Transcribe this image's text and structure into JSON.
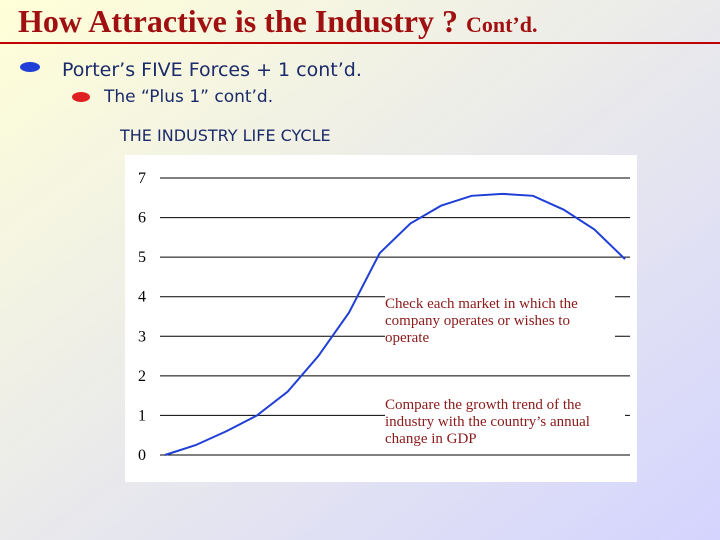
{
  "slide": {
    "title": "How Attractive is the Industry ?",
    "title_suffix": "Cont’d.",
    "bullet_1": "Porter’s FIVE Forces + 1 cont’d.",
    "bullet_2": "The “Plus 1” cont’d.",
    "heading": "THE INDUSTRY LIFE CYCLE"
  },
  "chart_data": {
    "type": "line",
    "categories": [
      null,
      null,
      null,
      null,
      null,
      null,
      null,
      null,
      null,
      null,
      null,
      null,
      null,
      null,
      null,
      null
    ],
    "values": [
      0,
      0.25,
      0.6,
      1.0,
      1.6,
      2.5,
      3.6,
      5.1,
      5.85,
      6.3,
      6.55,
      6.6,
      6.55,
      6.2,
      5.7,
      4.95
    ],
    "color": "#1f3fd6",
    "ylim": [
      0,
      7
    ],
    "yticks": [
      0,
      1,
      2,
      3,
      4,
      5,
      6,
      7
    ],
    "grid": true,
    "annotations": [
      "Check each market in which the company operates or wishes to operate",
      "Compare the growth trend of the industry with the country’s annual change in GDP"
    ]
  }
}
